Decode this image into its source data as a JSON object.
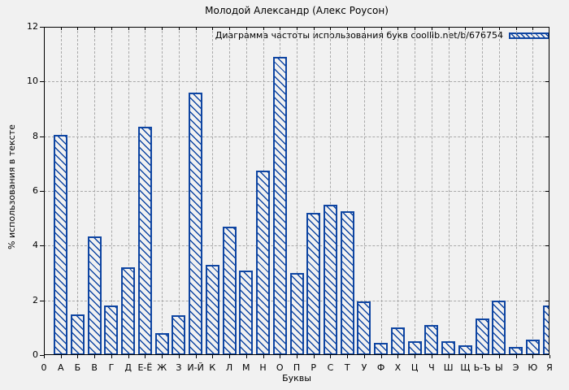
{
  "chart_data": {
    "type": "bar",
    "title": "Молодой Александр (Алекс Роусон)",
    "legend": {
      "label": "Диаграмма частоты использования букв coollib.net/b/676754",
      "position": "top-right-inside"
    },
    "xlabel": "Буквы",
    "ylabel": "% использования в тексте",
    "origin_tick_label": "0",
    "categories": [
      "А",
      "Б",
      "В",
      "Г",
      "Д",
      "Е-Ё",
      "Ж",
      "З",
      "И-Й",
      "К",
      "Л",
      "М",
      "Н",
      "О",
      "П",
      "Р",
      "С",
      "Т",
      "У",
      "Ф",
      "Х",
      "Ц",
      "Ч",
      "Ш",
      "Щ",
      "Ь-Ъ",
      "Ы",
      "Э",
      "Ю",
      "Я"
    ],
    "values": [
      8.05,
      1.5,
      4.35,
      1.8,
      3.2,
      8.35,
      0.8,
      1.45,
      9.6,
      3.3,
      4.7,
      3.1,
      6.75,
      10.9,
      3.0,
      5.2,
      5.5,
      5.25,
      1.95,
      0.45,
      1.0,
      0.5,
      1.1,
      0.5,
      0.35,
      1.35,
      2.0,
      0.3,
      0.55,
      1.8
    ],
    "ylim": [
      0,
      12
    ],
    "yticks": [
      0,
      2,
      4,
      6,
      8,
      10,
      12
    ],
    "grid": "dashed-both-axes",
    "bar_fill": "diagonal-hatch",
    "colors": {
      "bar": "#0e45a2",
      "background": "#f1f1f1",
      "grid": "#a9a9a9",
      "axis": "#000000",
      "text": "#000000"
    }
  }
}
